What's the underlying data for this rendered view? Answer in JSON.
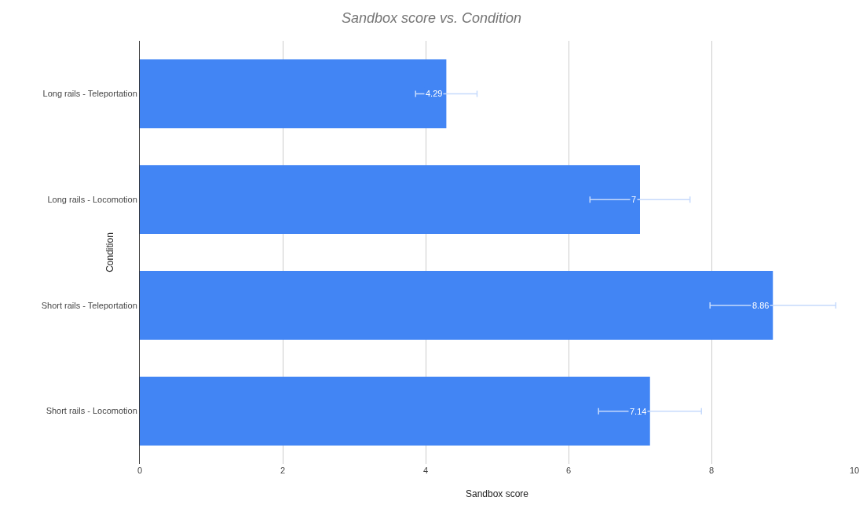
{
  "chart_data": {
    "type": "bar",
    "orientation": "horizontal",
    "title": "Sandbox score vs. Condition",
    "xlabel": "Sandbox score",
    "ylabel": "Condition",
    "categories": [
      "Long rails - Teleportation",
      "Long rails - Locomotion",
      "Short rails - Teleportation",
      "Short rails - Locomotion"
    ],
    "values": [
      4.29,
      7,
      8.86,
      7.14
    ],
    "color": "#4285f4",
    "errors": [
      0.43,
      0.7,
      0.88,
      0.72
    ],
    "data_labels": true,
    "xlim": [
      0,
      10
    ],
    "xticks": [
      0,
      2,
      4,
      6,
      8,
      10
    ],
    "grid": "x"
  }
}
